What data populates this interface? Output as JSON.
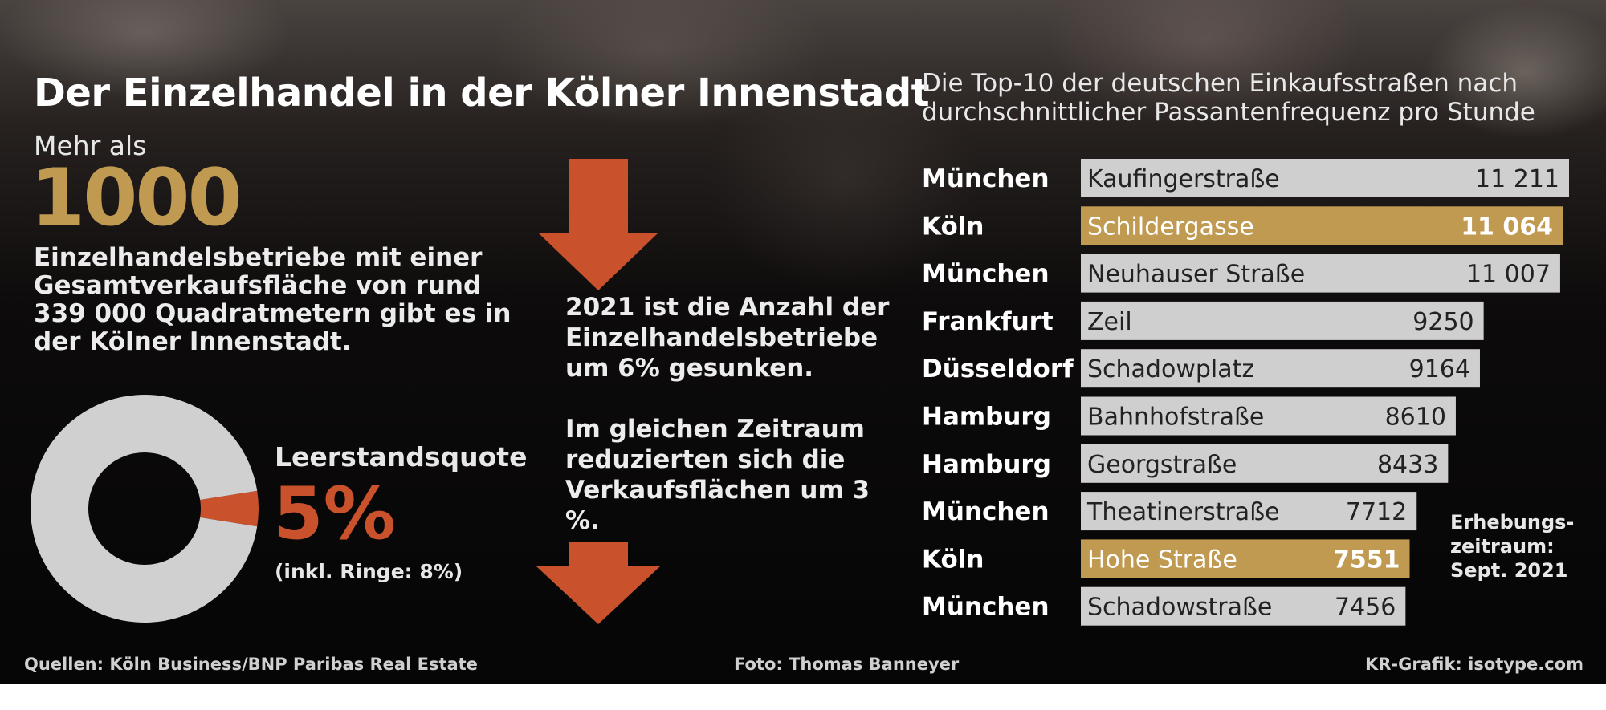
{
  "title": "Der Einzelhandel in der Kölner Innenstadt",
  "stats": {
    "intro": "Mehr als",
    "big_number": "1000",
    "description": "Einzelhandelsbetriebe mit einer Gesamtverkaufsfläche von rund 339 000 Quadratmetern gibt es in der Kölner Innenstadt.",
    "decline_text": "2021 ist die Anzahl der Einzelhandelsbetriebe um 6% gesunken.",
    "area_text": "Im gleichen Zeitraum reduzierten sich die Verkaufsflächen um 3 %."
  },
  "vacancy": {
    "label": "Leerstandsquote",
    "value": "5%",
    "note": "(inkl. Ringe: 8%)"
  },
  "top10_title": "Die Top-10 der deutschen Einkaufsstraßen nach durchschnittlicher Passantenfrequenz pro Stunde",
  "survey_note": "Erhebungs-zeitraum: Sept. 2021",
  "sources": {
    "left": "Quellen: Köln Business/BNP Paribas Real Estate",
    "middle": "Foto: Thomas Banneyer",
    "right": "KR-Grafik: isotype.com"
  },
  "colors": {
    "gold": "#c19a52",
    "red": "#c9512c",
    "bar_grey": "#cfcfcf",
    "highlight_bar": "#c19a52"
  },
  "icons": [
    "arrow-down-icon",
    "arrow-down-icon"
  ],
  "chart_data": [
    {
      "type": "bar",
      "orientation": "horizontal",
      "title": "Die Top-10 der deutschen Einkaufsstraßen nach durchschnittlicher Passantenfrequenz pro Stunde",
      "xlim": [
        0,
        11211
      ],
      "categories": [
        "Kaufingerstraße",
        "Schildergasse",
        "Neuhauser Straße",
        "Zeil",
        "Schadowplatz",
        "Bahnhofstraße",
        "Georgstraße",
        "Theatinerstraße",
        "Hohe Straße",
        "Schadowstraße"
      ],
      "cities": [
        "München",
        "Köln",
        "München",
        "Frankfurt",
        "Düsseldorf",
        "Hamburg",
        "Hamburg",
        "München",
        "Köln",
        "München"
      ],
      "values": [
        11211,
        11064,
        11007,
        9250,
        9164,
        8610,
        8433,
        7712,
        7551,
        7456
      ],
      "value_labels": [
        "11 211",
        "11 064",
        "11 007",
        "9250",
        "9164",
        "8610",
        "8433",
        "7712",
        "7551",
        "7456"
      ],
      "highlighted": [
        false,
        true,
        false,
        false,
        false,
        false,
        false,
        false,
        true,
        false
      ]
    },
    {
      "type": "pie",
      "title": "Leerstandsquote",
      "values": [
        5,
        95
      ],
      "colors": [
        "#c9512c",
        "#d0d0d0"
      ]
    }
  ]
}
